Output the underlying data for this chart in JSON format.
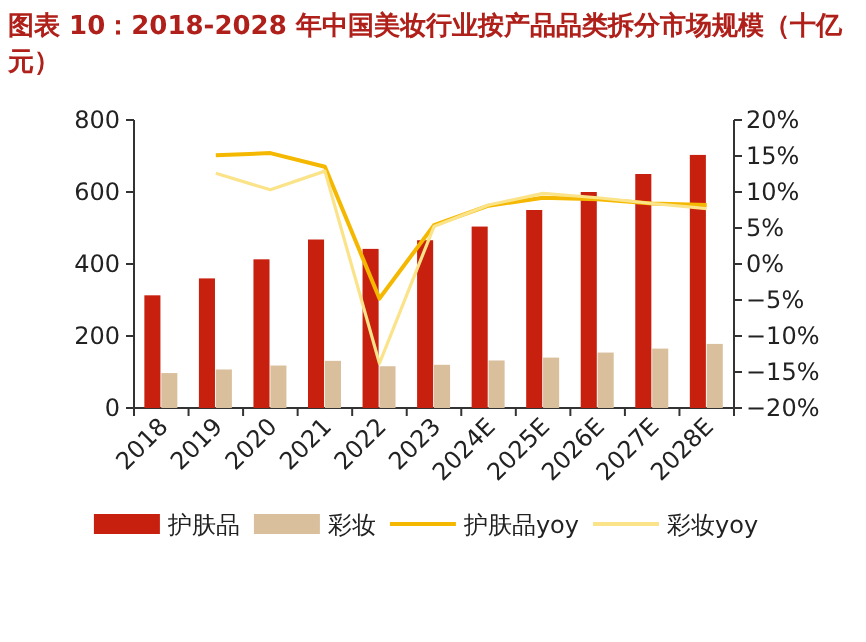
{
  "chart_data": {
    "type": "bar",
    "title": "图表 10：2018-2028 年中国美妆行业按产品品类拆分市场规模（十亿元）",
    "categories": [
      "2018",
      "2019",
      "2020",
      "2021",
      "2022",
      "2023",
      "2024E",
      "2025E",
      "2026E",
      "2027E",
      "2028E"
    ],
    "series": [
      {
        "name": "护肤品",
        "color": "#c8200e",
        "values": [
          313,
          360,
          413,
          468,
          442,
          466,
          504,
          550,
          600,
          650,
          703
        ]
      },
      {
        "name": "彩妆",
        "color": "#d9bf9b",
        "values": [
          97,
          107,
          118,
          131,
          116,
          120,
          132,
          140,
          154,
          165,
          178
        ]
      },
      {
        "name": "护肤品yoy",
        "type": "line",
        "axis": "y2",
        "color": "#f5b800",
        "values": [
          null,
          15.1,
          15.4,
          13.5,
          -4.8,
          5.4,
          8.1,
          9.2,
          9.0,
          8.4,
          8.2
        ]
      },
      {
        "name": "彩妆yoy",
        "type": "line",
        "axis": "y2",
        "color": "#fbe38a",
        "values": [
          null,
          12.6,
          10.3,
          12.9,
          -13.8,
          5.2,
          8.2,
          9.8,
          9.2,
          8.4,
          7.7
        ]
      }
    ],
    "ylim": [
      0,
      800
    ],
    "yticks": [
      0,
      200,
      400,
      600,
      800
    ],
    "y2lim": [
      -20,
      20
    ],
    "y2ticks": [
      {
        "value": -20,
        "label": "−20%"
      },
      {
        "value": -15,
        "label": "−15%"
      },
      {
        "value": -10,
        "label": "−10%"
      },
      {
        "value": -5,
        "label": "−5%"
      },
      {
        "value": 0,
        "label": "0%"
      },
      {
        "value": 5,
        "label": "5%"
      },
      {
        "value": 10,
        "label": "10%"
      },
      {
        "value": 15,
        "label": "15%"
      },
      {
        "value": 20,
        "label": "20%"
      }
    ],
    "grid": false,
    "legend": "bottom"
  }
}
